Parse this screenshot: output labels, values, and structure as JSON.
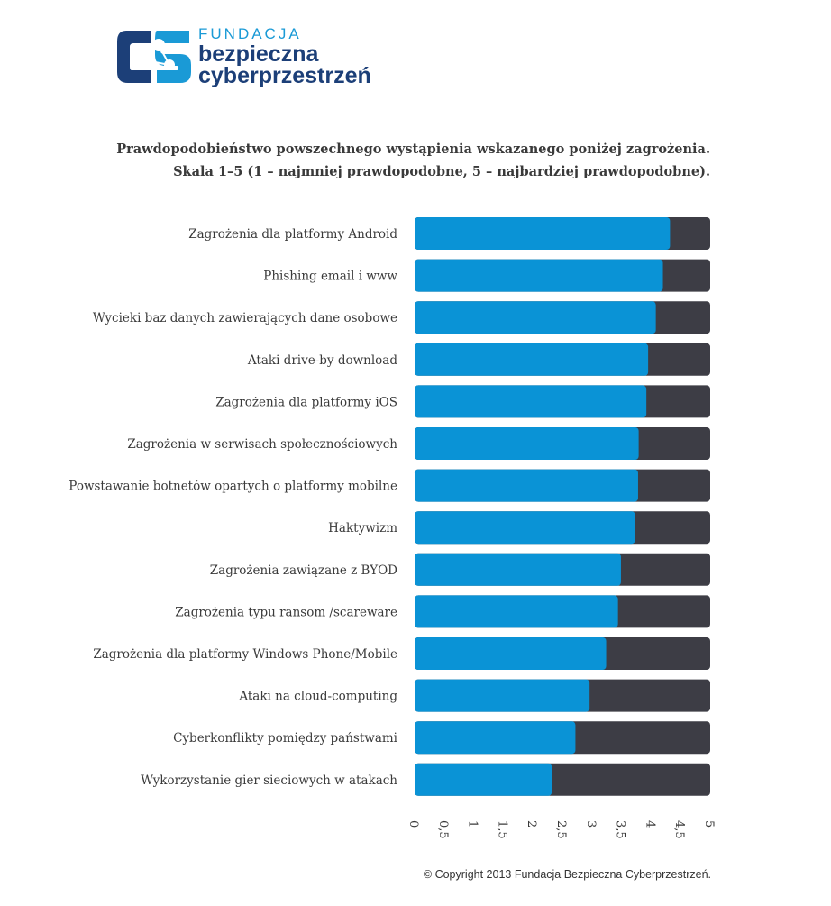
{
  "header": {
    "logo_line1": "FUNDACJA",
    "logo_line2": "bezpieczna",
    "logo_line3": "cyberprzestrzeń"
  },
  "colors": {
    "value_bar": "#0a93d6",
    "remainder_bar": "#3d3d45",
    "logo_dark": "#1c3f78",
    "logo_light": "#1a9ad6"
  },
  "chart_data": {
    "type": "bar",
    "orientation": "horizontal",
    "stacked_to_max": true,
    "title": "Prawdopodobieństwo powszechnego wystąpienia wskazanego poniżej zagrożenia.",
    "subtitle": "Skala 1–5 (1 – najmniej prawdopodobne, 5 – najbardziej prawdopodobne).",
    "categories": [
      "Zagrożenia dla platformy Android",
      "Phishing email  i  www",
      "Wycieki baz danych zawierających dane osobowe",
      "Ataki drive-by download",
      "Zagrożenia dla platformy iOS",
      "Zagrożenia w serwisach społecznościowych",
      "Powstawanie botnetów opartych o platformy mobilne",
      "Haktywizm",
      "Zagrożenia zawiązane z BYOD",
      "Zagrożenia typu ransom /scareware",
      "Zagrożenia dla platformy Windows Phone/Mobile",
      "Ataki na cloud-computing",
      "Cyberkonflikty pomiędzy państwami",
      "Wykorzystanie gier sieciowych w atakach"
    ],
    "values": [
      4.32,
      4.2,
      4.08,
      3.95,
      3.92,
      3.79,
      3.78,
      3.73,
      3.49,
      3.44,
      3.24,
      2.96,
      2.72,
      2.32
    ],
    "xlim": [
      0,
      5
    ],
    "ticks": [
      "0",
      "0,5",
      "1",
      "1,5",
      "2",
      "2,5",
      "3",
      "3,5",
      "4",
      "4,5",
      "5"
    ]
  },
  "footer": {
    "copyright": "© Copyright 2013 Fundacja Bezpieczna Cyberprzestrzeń."
  }
}
